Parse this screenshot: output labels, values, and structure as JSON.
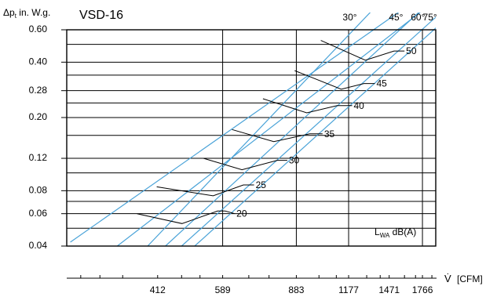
{
  "chart_data": {
    "type": "line",
    "title": "VSD-16",
    "ylabel_prefix": "Δp",
    "ylabel_sub": "t",
    "ylabel_suffix": " in. W.g.",
    "xlabel": "V̇",
    "xunit": "[CFM]",
    "y_scale": "log",
    "x_scale": "log",
    "ylim": [
      0.04,
      0.6
    ],
    "xlim": [
      250,
      1900
    ],
    "y_ticks": [
      0.04,
      0.06,
      0.08,
      0.12,
      0.2,
      0.28,
      0.4,
      0.6
    ],
    "y_tick_labels": [
      "0.04",
      "0.06",
      "0.08",
      "0.12",
      "0.20",
      "0.28",
      "0.40",
      "0.60"
    ],
    "x_ticks": [
      412,
      589,
      883,
      1177,
      1471,
      1766
    ],
    "x_tick_labels": [
      "412",
      "589",
      "883",
      "1177",
      "1471",
      "1766"
    ],
    "extra_hgrid": [
      0.05,
      0.07,
      0.1,
      0.16,
      0.24,
      0.34,
      0.5
    ],
    "grid": true,
    "damper_lines": [
      {
        "label": "",
        "points": [
          [
            255,
            0.042
          ],
          [
            1350,
            0.6
          ]
        ]
      },
      {
        "label": "",
        "points": [
          [
            330,
            0.04
          ],
          [
            1540,
            0.6
          ]
        ]
      },
      {
        "label": "30°",
        "points": [
          [
            390,
            0.04
          ],
          [
            1210,
            0.6
          ]
        ]
      },
      {
        "label": "45°",
        "points": [
          [
            430,
            0.04
          ],
          [
            1560,
            0.6
          ]
        ]
      },
      {
        "label": "60°",
        "points": [
          [
            470,
            0.04
          ],
          [
            1760,
            0.6
          ]
        ]
      },
      {
        "label": "75°",
        "points": [
          [
            505,
            0.04
          ],
          [
            1880,
            0.6
          ]
        ]
      }
    ],
    "sound_curves": [
      {
        "name": "20",
        "points": [
          [
            368,
            0.06
          ],
          [
            471,
            0.053
          ],
          [
            573,
            0.062
          ],
          [
            597,
            0.062
          ],
          [
            630,
            0.06
          ]
        ]
      },
      {
        "name": "25",
        "points": [
          [
            410,
            0.084
          ],
          [
            559,
            0.075
          ],
          [
            660,
            0.086
          ],
          [
            700,
            0.086
          ]
        ]
      },
      {
        "name": "30",
        "points": [
          [
            530,
            0.12
          ],
          [
            655,
            0.104
          ],
          [
            795,
            0.117
          ],
          [
            840,
            0.117
          ]
        ]
      },
      {
        "name": "35",
        "points": [
          [
            620,
            0.172
          ],
          [
            780,
            0.148
          ],
          [
            950,
            0.163
          ],
          [
            1020,
            0.163
          ]
        ]
      },
      {
        "name": "40",
        "points": [
          [
            735,
            0.253
          ],
          [
            935,
            0.212
          ],
          [
            1105,
            0.232
          ],
          [
            1200,
            0.232
          ]
        ]
      },
      {
        "name": "45",
        "points": [
          [
            875,
            0.36
          ],
          [
            1130,
            0.285
          ],
          [
            1280,
            0.306
          ],
          [
            1360,
            0.306
          ]
        ]
      },
      {
        "name": "50",
        "points": [
          [
            1010,
            0.525
          ],
          [
            1290,
            0.41
          ],
          [
            1510,
            0.46
          ],
          [
            1600,
            0.46
          ]
        ]
      }
    ],
    "annotation_prefix": "L",
    "annotation_sub": "WA",
    "annotation_suffix": " dB(A)"
  }
}
